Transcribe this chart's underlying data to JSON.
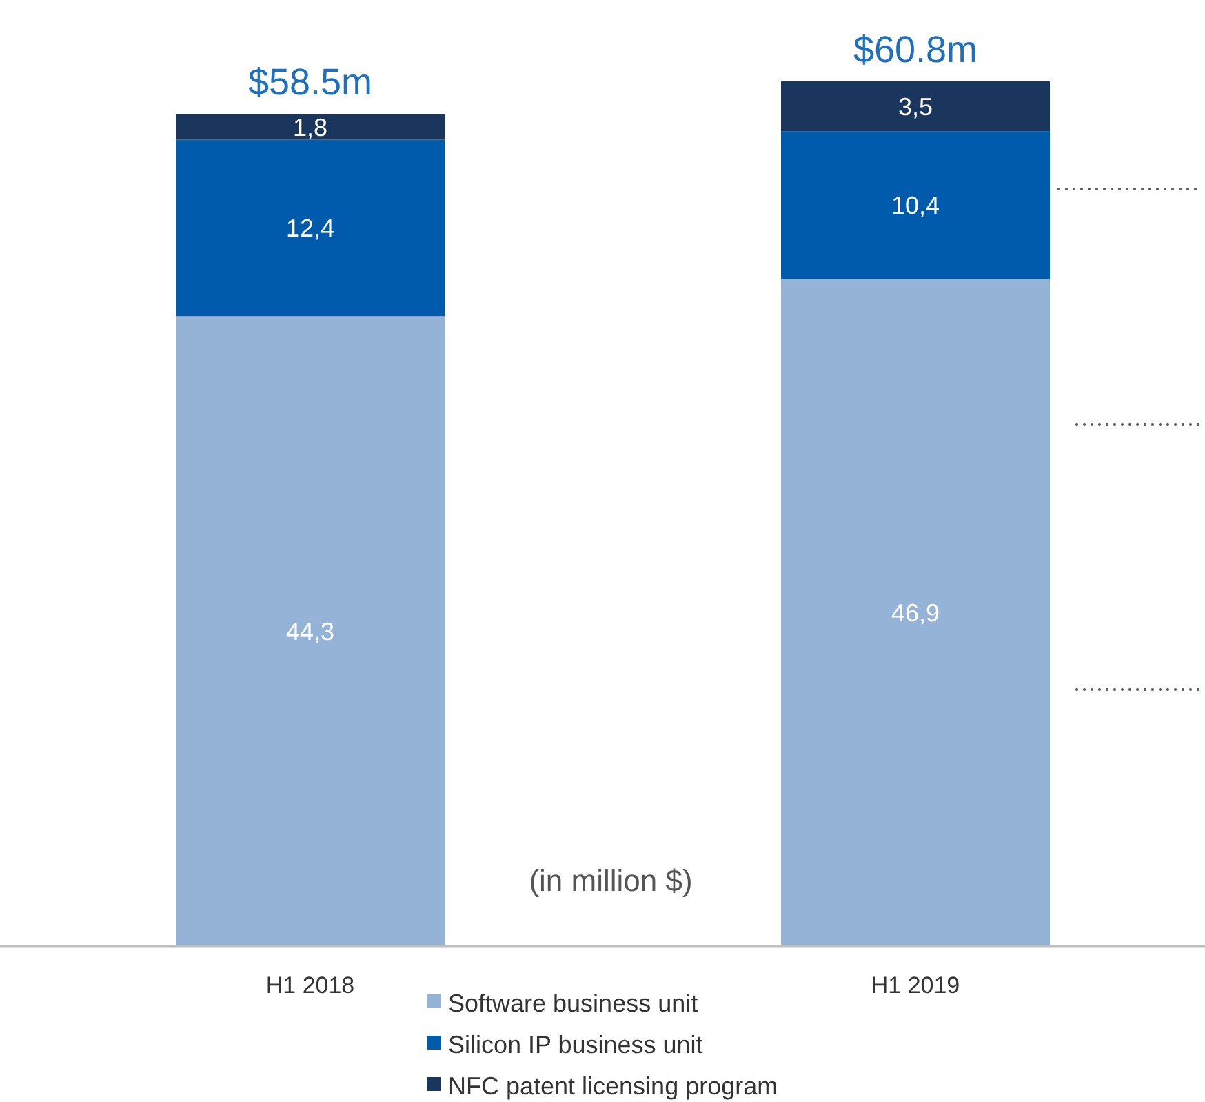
{
  "chart_data": {
    "type": "bar",
    "stacked": true,
    "categories": [
      "H1 2018",
      "H1 2019"
    ],
    "series": [
      {
        "name": "Software business unit",
        "color": "#95b3d7",
        "values": [
          44.3,
          46.9
        ],
        "value_labels": [
          "44,3",
          "46,9"
        ]
      },
      {
        "name": "Silicon IP business unit",
        "color": "#005bac",
        "values": [
          12.4,
          10.4
        ],
        "value_labels": [
          "12,4",
          "10,4"
        ]
      },
      {
        "name": "NFC patent licensing program",
        "color": "#1b365d",
        "values": [
          1.8,
          3.5
        ],
        "value_labels": [
          "1,8",
          "3,5"
        ]
      }
    ],
    "totals": [
      "$58.5m",
      "$60.8m"
    ],
    "annotations": [
      "(in million $)"
    ],
    "legend": "bottom"
  }
}
